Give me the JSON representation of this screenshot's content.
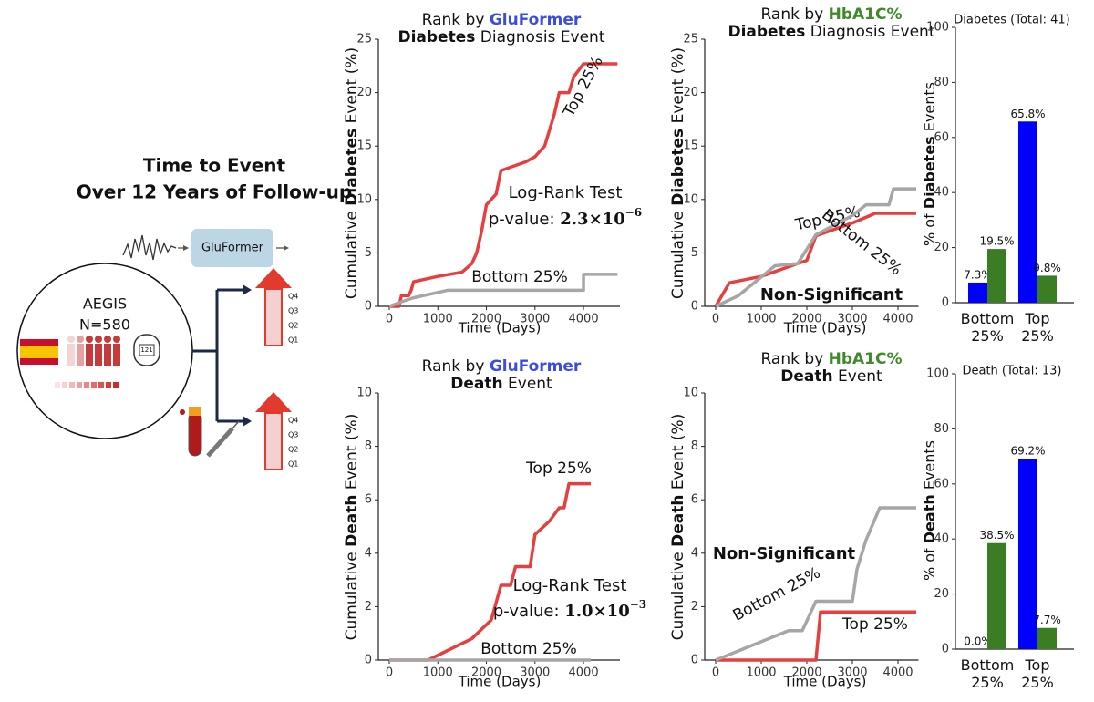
{
  "schematic": {
    "title_lines": [
      "Time to Event",
      "Over 12 Years of Follow-up"
    ],
    "model": "GluFormer",
    "cohort": "AEGIS",
    "n": "N=580",
    "device": "121",
    "quartiles": [
      "Q4",
      "Q3",
      "Q2",
      "Q1"
    ]
  },
  "chart_data": [
    {
      "type": "line",
      "title": [
        [
          {
            "text": "Rank by "
          },
          {
            "text": "GluFormer",
            "bold": true,
            "color": "#3b4ce0"
          }
        ],
        [
          {
            "text": "Diabetes",
            "bold": true
          },
          {
            "text": " Diagnosis Event"
          }
        ]
      ],
      "ylabel": [
        {
          "text": "Cumulative "
        },
        {
          "text": "Diabetes",
          "bold": true
        },
        {
          "text": " Event (%)"
        }
      ],
      "xlabel": "Time (Days)",
      "xlim": [
        -225,
        4750
      ],
      "xticks": [
        0,
        1000,
        2000,
        3000,
        4000
      ],
      "ylim": [
        0,
        25
      ],
      "yticks": [
        0,
        5,
        10,
        15,
        20,
        25
      ],
      "series": [
        {
          "name": "Top 25%",
          "color": "#e5403f",
          "x": [
            0,
            200,
            250,
            400,
            450,
            500,
            700,
            1000,
            1500,
            1700,
            1800,
            1900,
            2000,
            2200,
            2300,
            2800,
            3000,
            3200,
            3400,
            3500,
            3700,
            3800,
            4000,
            4700
          ],
          "values": [
            0,
            0,
            1,
            1,
            1.5,
            2.3,
            2.5,
            2.8,
            3.2,
            4,
            5,
            7,
            9.5,
            10.5,
            12.7,
            13.5,
            14,
            15,
            18,
            20,
            20,
            21.5,
            22.7,
            22.7
          ]
        },
        {
          "name": "Bottom 25%",
          "color": "#a6a6a6",
          "x": [
            0,
            300,
            500,
            1200,
            4000,
            4000,
            4700
          ],
          "values": [
            0,
            0.5,
            0.8,
            1.5,
            1.5,
            3,
            3
          ]
        }
      ],
      "annotations": [
        {
          "text": "Log-Rank Test"
        },
        {
          "text": "p-value: ",
          "mantissa": "2.3×10",
          "exponent": "−6"
        }
      ]
    },
    {
      "type": "line",
      "title": [
        [
          {
            "text": "Rank by "
          },
          {
            "text": "HbA1C%",
            "bold": true,
            "color": "#3f8a2a"
          }
        ],
        [
          {
            "text": "Diabetes",
            "bold": true
          },
          {
            "text": " Diagnosis Event"
          }
        ]
      ],
      "ylabel": [
        {
          "text": "Cumulative "
        },
        {
          "text": "Diabetes",
          "bold": true
        },
        {
          "text": " Event (%)"
        }
      ],
      "xlabel": "Time (Days)",
      "xlim": [
        -240,
        4450
      ],
      "xticks": [
        0,
        1000,
        2000,
        3000,
        4000
      ],
      "ylim": [
        0,
        25
      ],
      "yticks": [
        0,
        5,
        10,
        15,
        20,
        25
      ],
      "series": [
        {
          "name": "Top 25%",
          "color": "#e5403f",
          "x": [
            0,
            300,
            1000,
            1800,
            2000,
            2200,
            3000,
            3500,
            4400
          ],
          "values": [
            0,
            2.2,
            2.8,
            4,
            4.3,
            6.6,
            7.8,
            8.7,
            8.7
          ]
        },
        {
          "name": "Bottom 25%",
          "color": "#a6a6a6",
          "x": [
            0,
            500,
            1300,
            1800,
            2200,
            3000,
            3300,
            3800,
            3900,
            4400
          ],
          "values": [
            0,
            1,
            3.8,
            4,
            6.7,
            8.5,
            9.5,
            9.5,
            11,
            11
          ]
        }
      ],
      "annotations": [
        {
          "text": "Non-Significant",
          "bold": true
        }
      ]
    },
    {
      "type": "line",
      "title": [
        [
          {
            "text": "Rank by "
          },
          {
            "text": "GluFormer",
            "bold": true,
            "color": "#3b4ce0"
          }
        ],
        [
          {
            "text": "Death",
            "bold": true
          },
          {
            "text": " Event"
          }
        ]
      ],
      "ylabel": [
        {
          "text": "Cumulative "
        },
        {
          "text": "Death",
          "bold": true
        },
        {
          "text": " Event (%)"
        }
      ],
      "xlabel": "Time (Days)",
      "xlim": [
        -225,
        4750
      ],
      "xticks": [
        0,
        1000,
        2000,
        3000,
        4000
      ],
      "ylim": [
        0,
        10
      ],
      "yticks": [
        0,
        2,
        4,
        6,
        8,
        10
      ],
      "series": [
        {
          "name": "Top 25%",
          "color": "#e5403f",
          "x": [
            0,
            800,
            1700,
            2100,
            2300,
            2500,
            2600,
            2900,
            3000,
            3300,
            3500,
            3600,
            3700,
            4150
          ],
          "values": [
            0,
            0,
            0.8,
            1.5,
            2.8,
            2.8,
            3.5,
            3.5,
            4.7,
            5.2,
            5.7,
            5.7,
            6.6,
            6.6
          ]
        },
        {
          "name": "Bottom 25%",
          "color": "#a6a6a6",
          "x": [
            0,
            4150
          ],
          "values": [
            0,
            0
          ]
        }
      ],
      "annotations": [
        {
          "text": "Log-Rank Test"
        },
        {
          "text": "p-value: ",
          "mantissa": "1.0×10",
          "exponent": "−3"
        }
      ]
    },
    {
      "type": "line",
      "title": [
        [
          {
            "text": "Rank by "
          },
          {
            "text": "HbA1C%",
            "bold": true,
            "color": "#3f8a2a"
          }
        ],
        [
          {
            "text": "Death",
            "bold": true
          },
          {
            "text": " Event"
          }
        ]
      ],
      "ylabel": [
        {
          "text": "Cumulative "
        },
        {
          "text": "Death",
          "bold": true
        },
        {
          "text": " Event (%)"
        }
      ],
      "xlabel": "Time (Days)",
      "xlim": [
        -240,
        4450
      ],
      "xticks": [
        0,
        1000,
        2000,
        3000,
        4000
      ],
      "ylim": [
        0,
        10
      ],
      "yticks": [
        0,
        2,
        4,
        6,
        8,
        10
      ],
      "series": [
        {
          "name": "Top 25%",
          "color": "#e5403f",
          "x": [
            0,
            2200,
            2300,
            4400
          ],
          "values": [
            0,
            0,
            1.8,
            1.8
          ]
        },
        {
          "name": "Bottom 25%",
          "color": "#a6a6a6",
          "x": [
            0,
            1600,
            1900,
            2200,
            3000,
            3100,
            3300,
            3600,
            4400
          ],
          "values": [
            0,
            1.1,
            1.1,
            2.2,
            2.2,
            3.4,
            4.5,
            5.7,
            5.7
          ]
        }
      ],
      "annotations": [
        {
          "text": "Non-Significant",
          "bold": true
        }
      ]
    },
    {
      "type": "bar",
      "title": "Diabetes (Total: 41)",
      "ylabel": [
        {
          "text": "% of "
        },
        {
          "text": "Diabetes",
          "bold": true
        },
        {
          "text": " Events"
        }
      ],
      "categories": [
        "Bottom 25%",
        "Top 25%"
      ],
      "category_colors": [
        "#a6a6a6",
        "#e5403f"
      ],
      "ylim": [
        0,
        100
      ],
      "yticks": [
        0,
        20,
        40,
        60,
        80,
        100
      ],
      "series": [
        {
          "color": "#0000ff",
          "values": [
            7.3,
            65.8
          ],
          "value_labels": [
            "7.3%",
            "65.8%"
          ]
        },
        {
          "color": "#3a7d22",
          "values": [
            19.5,
            9.8
          ],
          "value_labels": [
            "19.5%",
            "9.8%"
          ]
        }
      ]
    },
    {
      "type": "bar",
      "title": "Death (Total: 13)",
      "ylabel": [
        {
          "text": "% of "
        },
        {
          "text": "Death",
          "bold": true
        },
        {
          "text": " Events"
        }
      ],
      "categories": [
        "Bottom 25%",
        "Top 25%"
      ],
      "category_colors": [
        "#a6a6a6",
        "#e5403f"
      ],
      "ylim": [
        0,
        100
      ],
      "yticks": [
        0,
        20,
        40,
        60,
        80,
        100
      ],
      "series": [
        {
          "color": "#0000ff",
          "values": [
            0.0,
            69.2
          ],
          "value_labels": [
            "0.0%",
            "69.2%"
          ]
        },
        {
          "color": "#3a7d22",
          "values": [
            38.5,
            7.7
          ],
          "value_labels": [
            "38.5%",
            "7.7%"
          ]
        }
      ]
    }
  ]
}
